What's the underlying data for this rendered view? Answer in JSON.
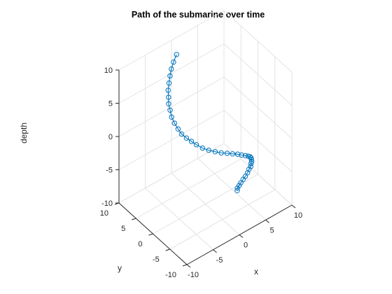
{
  "chart_data": {
    "type": "line3d",
    "title": "Path of the submarine over time",
    "xlabel": "x",
    "ylabel": "y",
    "zlabel": "depth",
    "xlim": [
      -10,
      10
    ],
    "ylim": [
      -10,
      10
    ],
    "zlim": [
      -10,
      10
    ],
    "x_ticks": [
      -10,
      -5,
      0,
      5,
      10
    ],
    "y_ticks": [
      -10,
      -5,
      0,
      5,
      10
    ],
    "z_ticks": [
      -10,
      -5,
      0,
      5,
      10
    ],
    "grid": true,
    "marker": "circle",
    "line_color": "#0072BD",
    "series": [
      {
        "x": [
          -0.4,
          -1.3,
          -2.1,
          -2.8,
          -3.5,
          -4.2,
          -4.7,
          -5.2,
          -5.5,
          -5.8,
          -5.9,
          -5.8,
          -5.7,
          -5.3,
          -4.8,
          -4.3,
          -3.6,
          -2.8,
          -1.9,
          -1.0,
          0.0,
          0.9,
          1.8,
          2.5,
          3.2,
          3.8,
          4.3,
          4.6,
          4.8,
          5.0,
          5.0,
          5.0,
          4.8,
          4.6,
          4.3,
          4.0,
          3.7,
          3.5,
          3.3,
          3.4
        ],
        "y": [
          7.9,
          7.4,
          6.8,
          6.1,
          5.3,
          4.5,
          3.6,
          2.8,
          1.9,
          1.0,
          0.0,
          -0.9,
          -1.8,
          -2.6,
          -3.3,
          -4.0,
          -4.7,
          -5.3,
          -5.8,
          -6.2,
          -6.4,
          -6.6,
          -6.7,
          -6.8,
          -6.8,
          -6.7,
          -6.5,
          -6.3,
          -6.1,
          -5.9,
          -5.7,
          -5.6,
          -5.4,
          -5.3,
          -5.1,
          -4.9,
          -4.7,
          -4.5,
          -4.3,
          -4.1
        ],
        "z": [
          9.0,
          8.5,
          8.1,
          7.7,
          7.3,
          6.9,
          6.5,
          6.1,
          5.7,
          5.2,
          4.8,
          4.3,
          3.9,
          3.5,
          3.1,
          2.7,
          2.2,
          1.8,
          1.4,
          1.0,
          0.6,
          0.2,
          -0.2,
          -0.6,
          -1.0,
          -1.4,
          -1.8,
          -2.2,
          -2.6,
          -3.1,
          -3.5,
          -4.0,
          -4.4,
          -4.9,
          -5.4,
          -5.8,
          -6.3,
          -6.7,
          -7.1,
          -7.6
        ]
      }
    ]
  }
}
